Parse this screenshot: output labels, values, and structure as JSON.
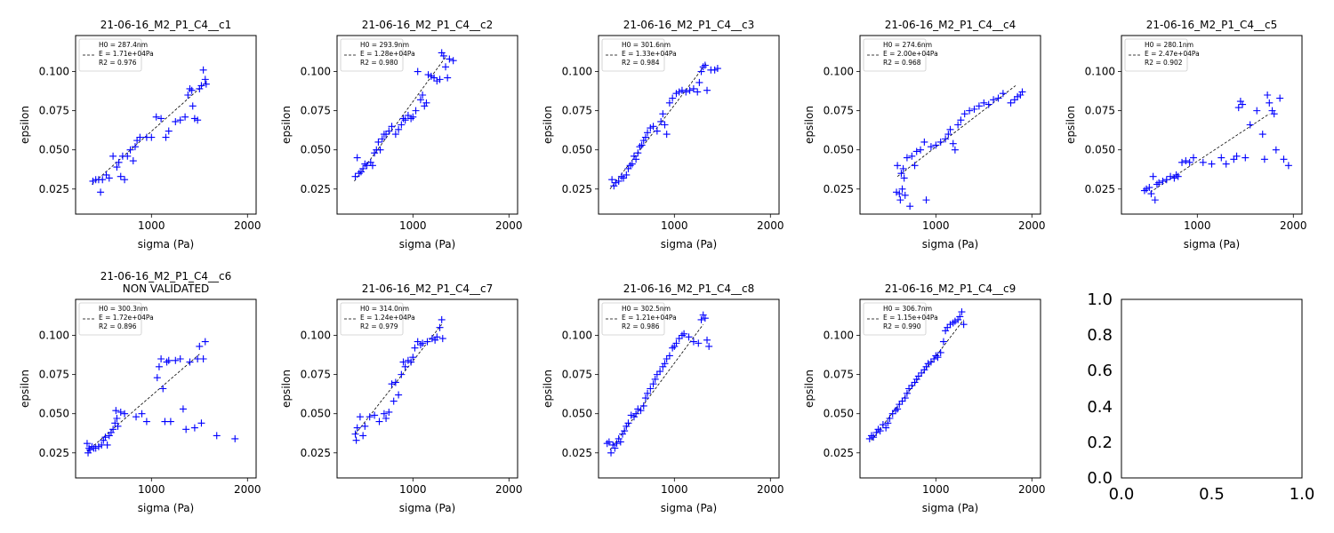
{
  "figure": {
    "empty_axes": {
      "xticks": [
        "0.0",
        "0.5",
        "1.0"
      ],
      "yticks": [
        "0.0",
        "0.2",
        "0.4",
        "0.6",
        "0.8",
        "1.0"
      ]
    }
  },
  "colors": {
    "points": "#0000ff",
    "fit": "#000000",
    "axes": "#000000"
  },
  "chart_data": [
    {
      "type": "scatter",
      "title": "21-06-16_M2_P1_C4__c1",
      "xlabel": "sigma (Pa)",
      "ylabel": "epsilon",
      "xlim": [
        210,
        2090
      ],
      "ylim": [
        0.009,
        0.123
      ],
      "xticks": [
        1000,
        2000
      ],
      "yticks": [
        0.025,
        0.05,
        0.075,
        0.1
      ],
      "legend": {
        "position": "upper-left",
        "lines": [
          "H0 = 287.4nm",
          "E = 1.71e+04Pa",
          "R2 = 0.976"
        ]
      },
      "fit": {
        "x": [
          380,
          1570
        ],
        "y": [
          0.028,
          0.093
        ]
      },
      "points": {
        "x": [
          390,
          420,
          450,
          470,
          490,
          530,
          560,
          600,
          640,
          660,
          680,
          700,
          720,
          750,
          780,
          810,
          830,
          850,
          880,
          950,
          1000,
          1050,
          1100,
          1150,
          1180,
          1250,
          1300,
          1350,
          1380,
          1400,
          1420,
          1430,
          1450,
          1480,
          1500,
          1520,
          1540,
          1560,
          1570
        ],
        "y": [
          0.03,
          0.031,
          0.031,
          0.023,
          0.031,
          0.034,
          0.032,
          0.046,
          0.039,
          0.042,
          0.033,
          0.046,
          0.031,
          0.046,
          0.05,
          0.043,
          0.052,
          0.056,
          0.058,
          0.058,
          0.058,
          0.071,
          0.07,
          0.058,
          0.062,
          0.068,
          0.069,
          0.071,
          0.085,
          0.089,
          0.088,
          0.078,
          0.07,
          0.069,
          0.089,
          0.091,
          0.101,
          0.095,
          0.092
        ]
      }
    },
    {
      "type": "scatter",
      "title": "21-06-16_M2_P1_C4__c2",
      "xlabel": "sigma (Pa)",
      "ylabel": "epsilon",
      "xlim": [
        210,
        2090
      ],
      "ylim": [
        0.009,
        0.123
      ],
      "xticks": [
        1000,
        2000
      ],
      "yticks": [
        0.025,
        0.05,
        0.075,
        0.1
      ],
      "legend": {
        "position": "upper-left",
        "lines": [
          "H0 = 293.9nm",
          "E = 1.28e+04Pa",
          "R2 = 0.980"
        ]
      },
      "fit": {
        "x": [
          390,
          1350
        ],
        "y": [
          0.03,
          0.11
        ]
      },
      "points": {
        "x": [
          400,
          420,
          440,
          460,
          480,
          500,
          520,
          560,
          580,
          600,
          620,
          640,
          660,
          680,
          700,
          720,
          750,
          780,
          820,
          850,
          880,
          900,
          920,
          950,
          980,
          1000,
          1030,
          1050,
          1080,
          1100,
          1120,
          1140,
          1160,
          1190,
          1220,
          1250,
          1280,
          1300,
          1320,
          1340,
          1360,
          1380,
          1420
        ],
        "y": [
          0.033,
          0.045,
          0.035,
          0.036,
          0.038,
          0.041,
          0.04,
          0.042,
          0.04,
          0.048,
          0.05,
          0.055,
          0.05,
          0.057,
          0.06,
          0.06,
          0.062,
          0.065,
          0.06,
          0.063,
          0.066,
          0.07,
          0.069,
          0.072,
          0.07,
          0.071,
          0.075,
          0.1,
          0.082,
          0.085,
          0.078,
          0.08,
          0.098,
          0.097,
          0.096,
          0.094,
          0.095,
          0.112,
          0.11,
          0.103,
          0.096,
          0.108,
          0.107
        ]
      }
    },
    {
      "type": "scatter",
      "title": "21-06-16_M2_P1_C4__c3",
      "xlabel": "sigma (Pa)",
      "ylabel": "epsilon",
      "xlim": [
        210,
        2090
      ],
      "ylim": [
        0.009,
        0.123
      ],
      "xticks": [
        1000,
        2000
      ],
      "yticks": [
        0.025,
        0.05,
        0.075,
        0.1
      ],
      "legend": {
        "position": "upper-left",
        "lines": [
          "H0 = 301.6nm",
          "E = 1.33e+04Pa",
          "R2 = 0.984"
        ]
      },
      "fit": {
        "x": [
          330,
          1330
        ],
        "y": [
          0.025,
          0.105
        ]
      },
      "points": {
        "x": [
          350,
          370,
          390,
          420,
          450,
          470,
          500,
          520,
          540,
          560,
          580,
          600,
          620,
          640,
          660,
          680,
          700,
          720,
          750,
          780,
          820,
          860,
          880,
          900,
          920,
          950,
          980,
          1020,
          1050,
          1080,
          1120,
          1160,
          1200,
          1240,
          1260,
          1280,
          1300,
          1320,
          1340,
          1380,
          1420,
          1450
        ],
        "y": [
          0.031,
          0.027,
          0.029,
          0.03,
          0.033,
          0.032,
          0.034,
          0.038,
          0.04,
          0.041,
          0.046,
          0.044,
          0.048,
          0.052,
          0.053,
          0.056,
          0.058,
          0.061,
          0.064,
          0.065,
          0.062,
          0.068,
          0.073,
          0.066,
          0.06,
          0.08,
          0.083,
          0.086,
          0.087,
          0.088,
          0.087,
          0.088,
          0.089,
          0.087,
          0.093,
          0.1,
          0.103,
          0.104,
          0.088,
          0.101,
          0.101,
          0.102
        ]
      }
    },
    {
      "type": "scatter",
      "title": "21-06-16_M2_P1_C4__c4",
      "xlabel": "sigma (Pa)",
      "ylabel": "epsilon",
      "xlim": [
        210,
        2090
      ],
      "ylim": [
        0.009,
        0.123
      ],
      "xticks": [
        1000,
        2000
      ],
      "yticks": [
        0.025,
        0.05,
        0.075,
        0.1
      ],
      "legend": {
        "position": "upper-left",
        "lines": [
          "H0 = 274.6nm",
          "E = 2.00e+04Pa",
          "R2 = 0.968"
        ]
      },
      "fit": {
        "x": [
          600,
          1830
        ],
        "y": [
          0.033,
          0.091
        ]
      },
      "points": {
        "x": [
          590,
          600,
          620,
          630,
          640,
          650,
          660,
          670,
          680,
          700,
          730,
          750,
          780,
          800,
          840,
          880,
          900,
          950,
          1000,
          1050,
          1100,
          1130,
          1150,
          1180,
          1200,
          1230,
          1260,
          1300,
          1350,
          1400,
          1450,
          1500,
          1550,
          1600,
          1650,
          1700,
          1780,
          1820,
          1850,
          1880,
          1900
        ],
        "y": [
          0.023,
          0.04,
          0.022,
          0.018,
          0.035,
          0.025,
          0.038,
          0.032,
          0.021,
          0.045,
          0.014,
          0.046,
          0.04,
          0.049,
          0.05,
          0.055,
          0.018,
          0.052,
          0.053,
          0.055,
          0.057,
          0.06,
          0.063,
          0.054,
          0.05,
          0.066,
          0.069,
          0.073,
          0.075,
          0.076,
          0.078,
          0.08,
          0.079,
          0.082,
          0.083,
          0.086,
          0.08,
          0.082,
          0.084,
          0.085,
          0.087
        ]
      }
    },
    {
      "type": "scatter",
      "title": "21-06-16_M2_P1_C4__c5",
      "xlabel": "sigma (Pa)",
      "ylabel": "epsilon",
      "xlim": [
        210,
        2090
      ],
      "ylim": [
        0.009,
        0.123
      ],
      "xticks": [
        1000,
        2000
      ],
      "yticks": [
        0.025,
        0.05,
        0.075,
        0.1
      ],
      "legend": {
        "position": "upper-left",
        "lines": [
          "H0 = 280.1nm",
          "E = 2.47e+04Pa",
          "R2 = 0.902"
        ]
      },
      "fit": {
        "x": [
          510,
          1750
        ],
        "y": [
          0.023,
          0.073
        ]
      },
      "points": {
        "x": [
          450,
          470,
          500,
          520,
          540,
          560,
          580,
          600,
          640,
          680,
          720,
          760,
          780,
          800,
          840,
          880,
          920,
          960,
          1060,
          1150,
          1250,
          1300,
          1380,
          1410,
          1430,
          1450,
          1470,
          1500,
          1550,
          1620,
          1680,
          1700,
          1730,
          1750,
          1780,
          1800,
          1820,
          1860,
          1900,
          1950
        ],
        "y": [
          0.024,
          0.025,
          0.026,
          0.022,
          0.033,
          0.018,
          0.028,
          0.029,
          0.03,
          0.031,
          0.033,
          0.032,
          0.034,
          0.033,
          0.042,
          0.043,
          0.042,
          0.045,
          0.042,
          0.041,
          0.045,
          0.041,
          0.044,
          0.046,
          0.077,
          0.081,
          0.079,
          0.045,
          0.066,
          0.075,
          0.06,
          0.044,
          0.085,
          0.08,
          0.075,
          0.073,
          0.05,
          0.083,
          0.044,
          0.04
        ]
      }
    },
    {
      "type": "scatter",
      "title": "21-06-16_M2_P1_C4__c6",
      "subtitle": "NON VALIDATED",
      "xlabel": "sigma (Pa)",
      "ylabel": "epsilon",
      "xlim": [
        210,
        2090
      ],
      "ylim": [
        0.009,
        0.123
      ],
      "xticks": [
        1000,
        2000
      ],
      "yticks": [
        0.025,
        0.05,
        0.075,
        0.1
      ],
      "legend": {
        "position": "upper-left",
        "lines": [
          "H0 = 300.3nm",
          "E = 1.72e+04Pa",
          "R2 = 0.896"
        ]
      },
      "fit": {
        "x": [
          330,
          1500
        ],
        "y": [
          0.026,
          0.088
        ]
      },
      "points": {
        "x": [
          330,
          340,
          350,
          360,
          380,
          400,
          420,
          450,
          480,
          500,
          520,
          540,
          560,
          580,
          600,
          620,
          630,
          640,
          650,
          680,
          720,
          840,
          900,
          950,
          1060,
          1080,
          1100,
          1120,
          1140,
          1160,
          1180,
          1200,
          1250,
          1300,
          1330,
          1360,
          1400,
          1450,
          1480,
          1500,
          1520,
          1540,
          1560,
          1680,
          1870
        ],
        "y": [
          0.031,
          0.025,
          0.028,
          0.027,
          0.029,
          0.028,
          0.028,
          0.029,
          0.03,
          0.033,
          0.035,
          0.03,
          0.036,
          0.038,
          0.04,
          0.044,
          0.052,
          0.047,
          0.042,
          0.051,
          0.05,
          0.048,
          0.05,
          0.045,
          0.073,
          0.08,
          0.085,
          0.066,
          0.045,
          0.083,
          0.084,
          0.045,
          0.084,
          0.085,
          0.053,
          0.04,
          0.083,
          0.041,
          0.085,
          0.093,
          0.044,
          0.085,
          0.096,
          0.036,
          0.034
        ]
      }
    },
    {
      "type": "scatter",
      "title": "21-06-16_M2_P1_C4__c7",
      "xlabel": "sigma (Pa)",
      "ylabel": "epsilon",
      "xlim": [
        210,
        2090
      ],
      "ylim": [
        0.009,
        0.123
      ],
      "xticks": [
        1000,
        2000
      ],
      "yticks": [
        0.025,
        0.05,
        0.075,
        0.1
      ],
      "legend": {
        "position": "upper-left",
        "lines": [
          "H0 = 314.0nm",
          "E = 1.24e+04Pa",
          "R2 = 0.979"
        ]
      },
      "fit": {
        "x": [
          400,
          1300
        ],
        "y": [
          0.037,
          0.107
        ]
      },
      "points": {
        "x": [
          400,
          410,
          420,
          450,
          480,
          500,
          550,
          600,
          650,
          700,
          720,
          750,
          780,
          800,
          820,
          850,
          880,
          900,
          920,
          950,
          980,
          1000,
          1020,
          1050,
          1080,
          1100,
          1150,
          1200,
          1230,
          1250,
          1280,
          1300,
          1310
        ],
        "y": [
          0.037,
          0.033,
          0.041,
          0.048,
          0.036,
          0.042,
          0.048,
          0.049,
          0.045,
          0.05,
          0.047,
          0.051,
          0.069,
          0.058,
          0.07,
          0.062,
          0.075,
          0.083,
          0.08,
          0.084,
          0.083,
          0.086,
          0.092,
          0.096,
          0.094,
          0.095,
          0.096,
          0.098,
          0.097,
          0.099,
          0.105,
          0.11,
          0.098
        ]
      }
    },
    {
      "type": "scatter",
      "title": "21-06-16_M2_P1_C4__c8",
      "xlabel": "sigma (Pa)",
      "ylabel": "epsilon",
      "xlim": [
        210,
        2090
      ],
      "ylim": [
        0.009,
        0.123
      ],
      "xticks": [
        1000,
        2000
      ],
      "yticks": [
        0.025,
        0.05,
        0.075,
        0.1
      ],
      "legend": {
        "position": "upper-left",
        "lines": [
          "H0 = 302.5nm",
          "E = 1.21e+04Pa",
          "R2 = 0.986"
        ]
      },
      "fit": {
        "x": [
          330,
          1300
        ],
        "y": [
          0.027,
          0.107
        ]
      },
      "points": {
        "x": [
          300,
          320,
          340,
          360,
          380,
          400,
          420,
          440,
          460,
          480,
          500,
          520,
          550,
          580,
          600,
          620,
          650,
          680,
          700,
          720,
          750,
          780,
          800,
          820,
          850,
          880,
          900,
          920,
          950,
          980,
          1000,
          1020,
          1050,
          1080,
          1100,
          1150,
          1200,
          1250,
          1280,
          1300,
          1320,
          1340,
          1360
        ],
        "y": [
          0.031,
          0.032,
          0.025,
          0.03,
          0.028,
          0.031,
          0.034,
          0.032,
          0.037,
          0.039,
          0.042,
          0.044,
          0.049,
          0.048,
          0.05,
          0.053,
          0.052,
          0.055,
          0.06,
          0.063,
          0.066,
          0.069,
          0.072,
          0.075,
          0.077,
          0.08,
          0.082,
          0.085,
          0.087,
          0.092,
          0.093,
          0.095,
          0.098,
          0.1,
          0.101,
          0.099,
          0.096,
          0.095,
          0.11,
          0.113,
          0.111,
          0.097,
          0.093
        ]
      }
    },
    {
      "type": "scatter",
      "title": "21-06-16_M2_P1_C4__c9",
      "xlabel": "sigma (Pa)",
      "ylabel": "epsilon",
      "xlim": [
        210,
        2090
      ],
      "ylim": [
        0.009,
        0.123
      ],
      "xticks": [
        1000,
        2000
      ],
      "yticks": [
        0.025,
        0.05,
        0.075,
        0.1
      ],
      "legend": {
        "position": "upper-left",
        "lines": [
          "H0 = 306.7nm",
          "E = 1.15e+04Pa",
          "R2 = 0.990"
        ]
      },
      "fit": {
        "x": [
          330,
          1290
        ],
        "y": [
          0.033,
          0.11
        ]
      },
      "points": {
        "x": [
          310,
          330,
          350,
          380,
          400,
          420,
          450,
          480,
          500,
          520,
          550,
          580,
          600,
          620,
          650,
          680,
          700,
          720,
          750,
          780,
          800,
          820,
          850,
          880,
          900,
          920,
          950,
          980,
          1000,
          1020,
          1050,
          1080,
          1100,
          1120,
          1150,
          1180,
          1200,
          1230,
          1250,
          1270,
          1290
        ],
        "y": [
          0.034,
          0.036,
          0.035,
          0.038,
          0.04,
          0.039,
          0.043,
          0.041,
          0.044,
          0.047,
          0.05,
          0.052,
          0.053,
          0.056,
          0.058,
          0.06,
          0.063,
          0.066,
          0.068,
          0.07,
          0.072,
          0.074,
          0.076,
          0.078,
          0.08,
          0.082,
          0.083,
          0.085,
          0.087,
          0.086,
          0.089,
          0.096,
          0.103,
          0.105,
          0.107,
          0.108,
          0.109,
          0.11,
          0.112,
          0.115,
          0.107
        ]
      }
    }
  ]
}
